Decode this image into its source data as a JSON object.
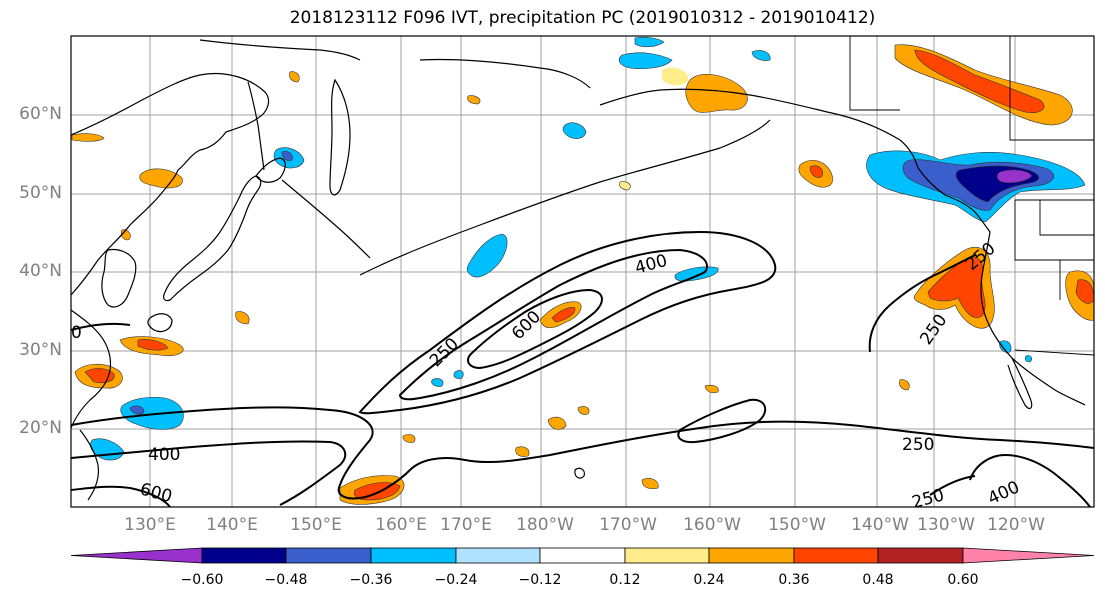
{
  "title": "2018123112 F096 IVT, precipitation PC (2019010312 - 2019010412)",
  "lat_labels": [
    "60°N",
    "50°N",
    "40°N",
    "30°N",
    "20°N"
  ],
  "lon_labels": [
    "130°E",
    "140°E",
    "150°E",
    "160°E",
    "170°E",
    "180°W",
    "170°W",
    "160°W",
    "150°W",
    "140°W",
    "130°W",
    "120°W"
  ],
  "colorbar": {
    "colors": [
      "#9932cc",
      "#00008b",
      "#3a5fcd",
      "#00bfff",
      "#b0e2ff",
      "#ffffff",
      "#ffec8b",
      "#ffa500",
      "#ff4500",
      "#b22222",
      "#ff82ab"
    ],
    "ticks": [
      "−0.60",
      "−0.48",
      "−0.36",
      "−0.24",
      "−0.12",
      "0.12",
      "0.24",
      "0.36",
      "0.48",
      "0.60"
    ]
  },
  "contour_labels": [
    "400",
    "600",
    "250",
    "600",
    "400",
    "250",
    "250",
    "250",
    "250",
    "400",
    "0"
  ]
}
